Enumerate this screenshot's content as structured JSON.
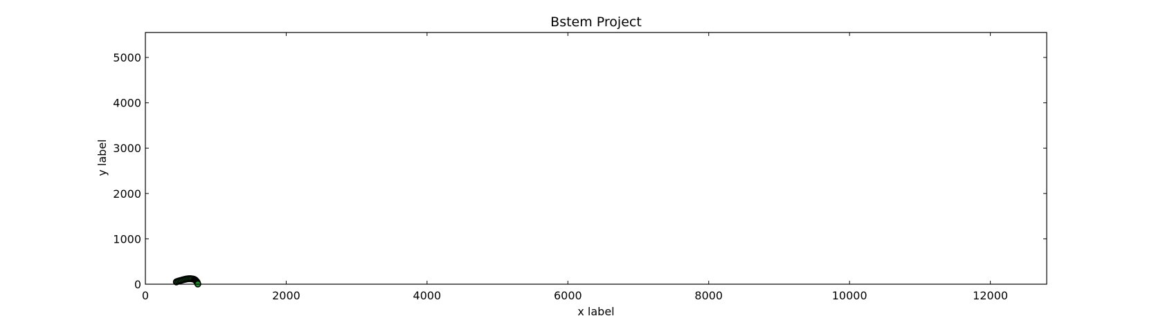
{
  "chart_data": {
    "type": "scatter",
    "title": "Bstem Project",
    "xlabel": "x label",
    "ylabel": "y label",
    "xlim": [
      0,
      12800
    ],
    "ylim": [
      0,
      5550
    ],
    "xticks": [
      0,
      2000,
      4000,
      6000,
      8000,
      10000,
      12000
    ],
    "yticks": [
      0,
      1000,
      2000,
      3000,
      4000,
      5000
    ],
    "grid": false,
    "series": [
      {
        "name": "path",
        "marker": "circle",
        "color": "#1a9a2a",
        "edge_color": "#000000",
        "x": [
          440,
          450,
          470,
          490,
          510,
          530,
          550,
          570,
          590,
          610,
          630,
          650,
          670,
          690,
          705,
          715,
          725,
          735,
          740,
          745
        ],
        "y": [
          50,
          58,
          68,
          78,
          86,
          95,
          103,
          110,
          116,
          120,
          122,
          121,
          117,
          108,
          96,
          82,
          65,
          45,
          25,
          5
        ]
      }
    ]
  }
}
